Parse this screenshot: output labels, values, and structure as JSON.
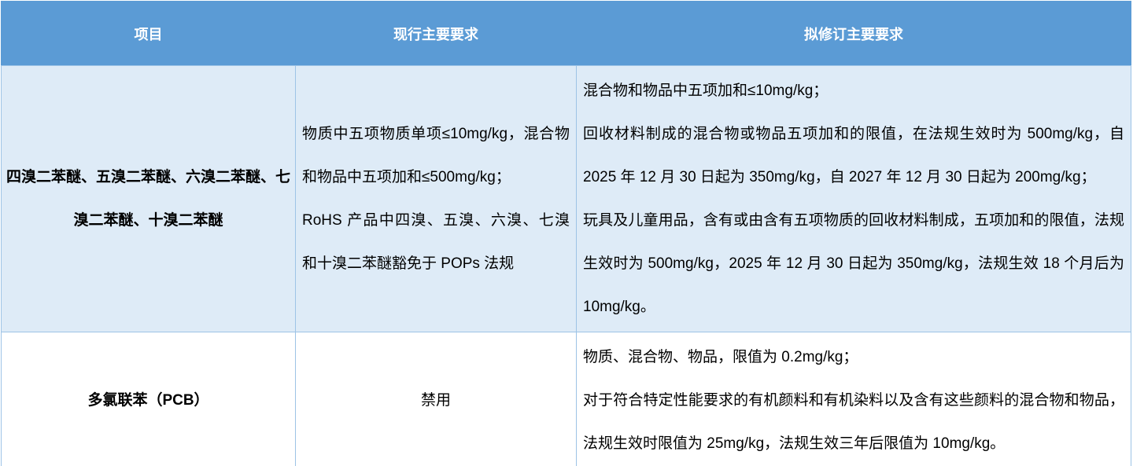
{
  "colors": {
    "header_bg": "#5B9BD5",
    "header_text": "#FFFFFF",
    "alt_row_bg": "#DEEBF7",
    "border": "#9DC3E6",
    "body_text": "#000000"
  },
  "table": {
    "header": {
      "item": "项目",
      "current": "现行主要要求",
      "proposed": "拟修订主要要求"
    },
    "rows": [
      {
        "item": "四溴二苯醚、五溴二苯醚、六溴二苯醚、七溴二苯醚、十溴二苯醚",
        "current": [
          "物质中五项物质单项≤10mg/kg，混合物和物品中五项加和≤500mg/kg；",
          "RoHS 产品中四溴、五溴、六溴、七溴和十溴二苯醚豁免于 POPs 法规"
        ],
        "proposed": [
          "混合物和物品中五项加和≤10mg/kg；",
          "回收材料制成的混合物或物品五项加和的限值，在法规生效时为 500mg/kg，自 2025 年 12 月 30 日起为 350mg/kg，自 2027 年 12 月 30 日起为 200mg/kg；",
          "玩具及儿童用品，含有或由含有五项物质的回收材料制成，五项加和的限值，法规生效时为 500mg/kg，2025 年 12 月 30 日起为 350mg/kg，法规生效 18 个月后为 10mg/kg。"
        ]
      },
      {
        "item": "多氯联苯（PCB）",
        "current": [
          "禁用"
        ],
        "proposed": [
          "物质、混合物、物品，限值为 0.2mg/kg；",
          "对于符合特定性能要求的有机颜料和有机染料以及含有这些颜料的混合物和物品，法规生效时限值为 25mg/kg，法规生效三年后限值为 10mg/kg。"
        ]
      }
    ]
  }
}
